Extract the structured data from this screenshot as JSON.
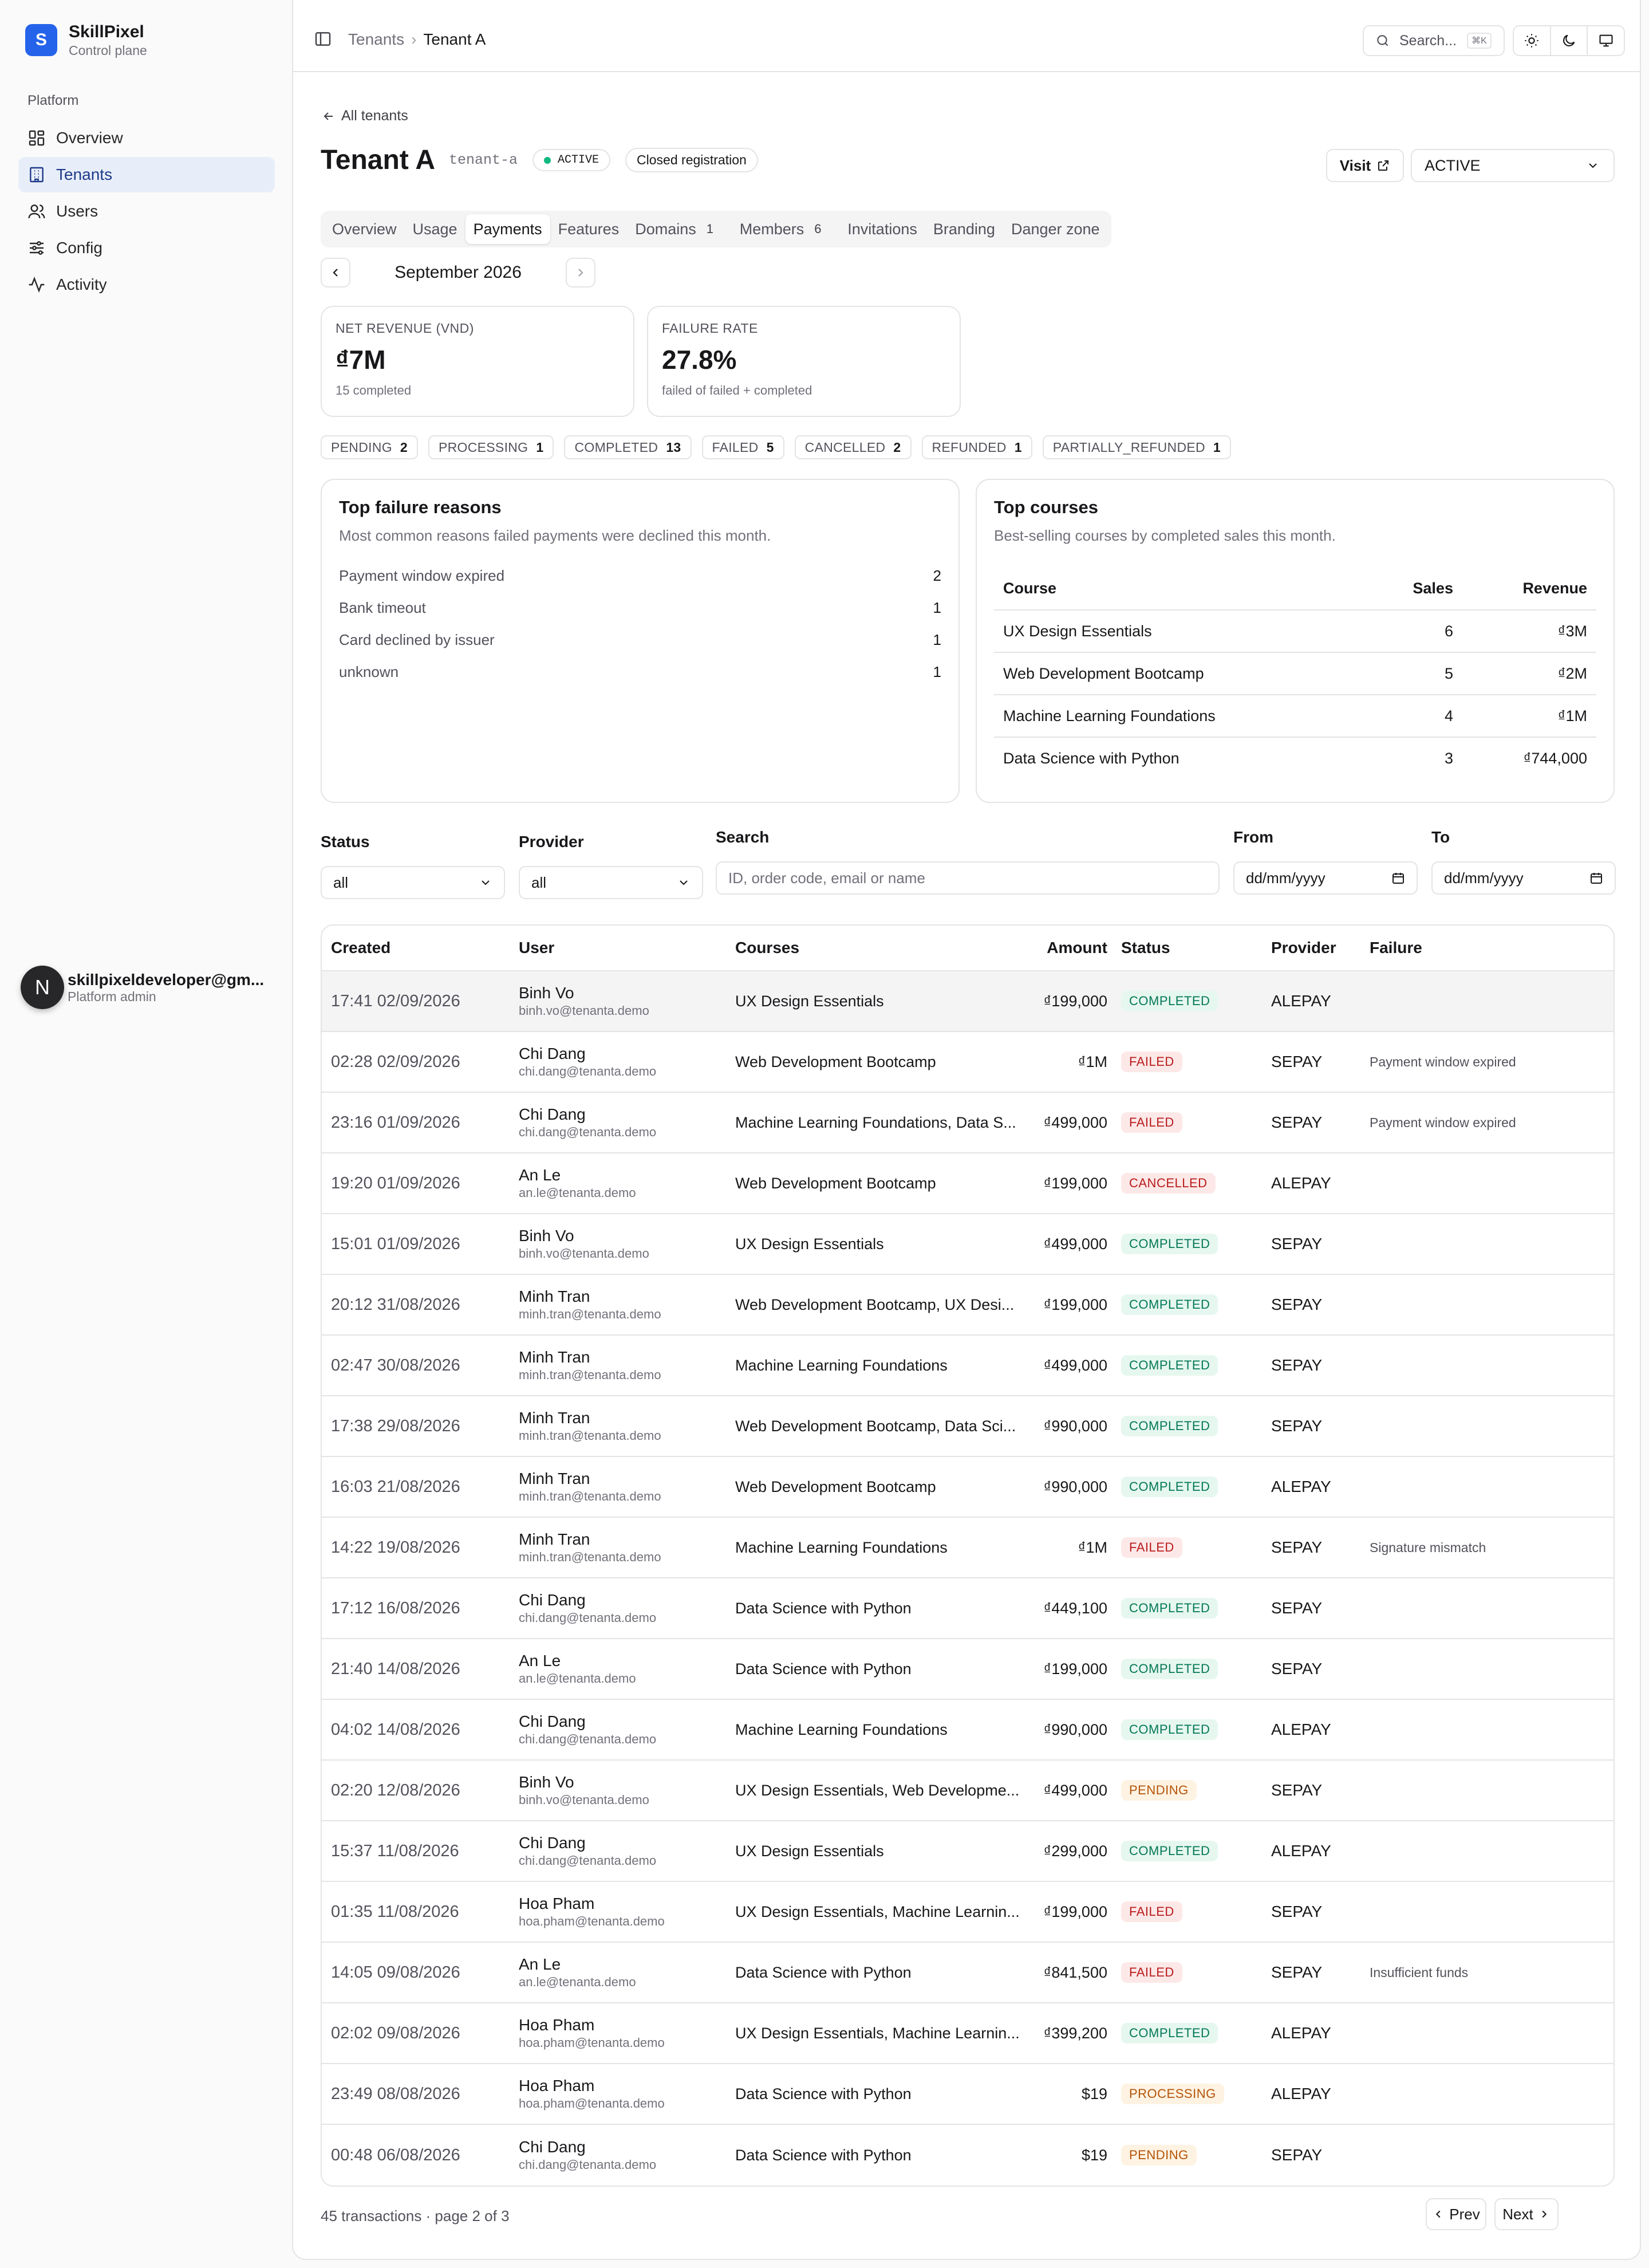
{
  "brand": {
    "initial": "S",
    "name": "SkillPixel",
    "subtitle": "Control plane"
  },
  "sidebar": {
    "group_label": "Platform",
    "items": [
      {
        "label": "Overview",
        "icon": "grid-icon",
        "active": false
      },
      {
        "label": "Tenants",
        "icon": "building-icon",
        "active": true
      },
      {
        "label": "Users",
        "icon": "users-icon",
        "active": false
      },
      {
        "label": "Config",
        "icon": "sliders-icon",
        "active": false
      },
      {
        "label": "Activity",
        "icon": "activity-icon",
        "active": false
      }
    ],
    "user": {
      "initial": "N",
      "email": "skillpixeldeveloper@gm...",
      "role": "Platform admin"
    }
  },
  "topbar": {
    "breadcrumb": [
      "Tenants",
      "Tenant A"
    ],
    "search_label": "Search...",
    "search_shortcut": "⌘K"
  },
  "header": {
    "back_label": "All tenants",
    "title": "Tenant A",
    "slug": "tenant-a",
    "status_badge": "ACTIVE",
    "registration_badge": "Closed registration",
    "visit_label": "Visit",
    "status_select": "ACTIVE"
  },
  "tabs": [
    {
      "label": "Overview",
      "count": null,
      "active": false
    },
    {
      "label": "Usage",
      "count": null,
      "active": false
    },
    {
      "label": "Payments",
      "count": null,
      "active": true
    },
    {
      "label": "Features",
      "count": null,
      "active": false
    },
    {
      "label": "Domains",
      "count": "1",
      "active": false
    },
    {
      "label": "Members",
      "count": "6",
      "active": false
    },
    {
      "label": "Invitations",
      "count": null,
      "active": false
    },
    {
      "label": "Branding",
      "count": null,
      "active": false
    },
    {
      "label": "Danger zone",
      "count": null,
      "active": false
    }
  ],
  "month": "September 2026",
  "stats": {
    "revenue": {
      "label": "NET REVENUE (VND)",
      "value": "₫7M",
      "sub": "15 completed"
    },
    "failure": {
      "label": "FAILURE RATE",
      "value": "27.8%",
      "sub": "failed of failed + completed"
    }
  },
  "status_counts": [
    {
      "label": "PENDING",
      "count": "2"
    },
    {
      "label": "PROCESSING",
      "count": "1"
    },
    {
      "label": "COMPLETED",
      "count": "13"
    },
    {
      "label": "FAILED",
      "count": "5"
    },
    {
      "label": "CANCELLED",
      "count": "2"
    },
    {
      "label": "REFUNDED",
      "count": "1"
    },
    {
      "label": "PARTIALLY_REFUNDED",
      "count": "1"
    }
  ],
  "failure_reasons": {
    "title": "Top failure reasons",
    "description": "Most common reasons failed payments were declined this month.",
    "items": [
      {
        "reason": "Payment window expired",
        "count": "2"
      },
      {
        "reason": "Bank timeout",
        "count": "1"
      },
      {
        "reason": "Card declined by issuer",
        "count": "1"
      },
      {
        "reason": "unknown",
        "count": "1"
      }
    ]
  },
  "top_courses": {
    "title": "Top courses",
    "description": "Best-selling courses by completed sales this month.",
    "headers": [
      "Course",
      "Sales",
      "Revenue"
    ],
    "rows": [
      {
        "course": "UX Design Essentials",
        "sales": "6",
        "revenue": "₫3M"
      },
      {
        "course": "Web Development Bootcamp",
        "sales": "5",
        "revenue": "₫2M"
      },
      {
        "course": "Machine Learning Foundations",
        "sales": "4",
        "revenue": "₫1M"
      },
      {
        "course": "Data Science with Python",
        "sales": "3",
        "revenue": "₫744,000"
      }
    ]
  },
  "filters": {
    "status": {
      "label": "Status",
      "value": "all"
    },
    "provider": {
      "label": "Provider",
      "value": "all"
    },
    "search": {
      "label": "Search",
      "placeholder": "ID, order code, email or name"
    },
    "from": {
      "label": "From",
      "placeholder": "dd/mm/yyyy"
    },
    "to": {
      "label": "To",
      "placeholder": "dd/mm/yyyy"
    }
  },
  "transactions": {
    "headers": [
      "Created",
      "User",
      "Courses",
      "Amount",
      "Status",
      "Provider",
      "Failure"
    ],
    "rows": [
      {
        "created": "17:41 02/09/2026",
        "name": "Binh Vo",
        "email": "binh.vo@tenanta.demo",
        "courses": "UX Design Essentials",
        "amount": "₫199,000",
        "status": "COMPLETED",
        "provider": "ALEPAY",
        "failure": ""
      },
      {
        "created": "02:28 02/09/2026",
        "name": "Chi Dang",
        "email": "chi.dang@tenanta.demo",
        "courses": "Web Development Bootcamp",
        "amount": "₫1M",
        "status": "FAILED",
        "provider": "SEPAY",
        "failure": "Payment window expired"
      },
      {
        "created": "23:16 01/09/2026",
        "name": "Chi Dang",
        "email": "chi.dang@tenanta.demo",
        "courses": "Machine Learning Foundations, Data S...",
        "amount": "₫499,000",
        "status": "FAILED",
        "provider": "SEPAY",
        "failure": "Payment window expired"
      },
      {
        "created": "19:20 01/09/2026",
        "name": "An Le",
        "email": "an.le@tenanta.demo",
        "courses": "Web Development Bootcamp",
        "amount": "₫199,000",
        "status": "CANCELLED",
        "provider": "ALEPAY",
        "failure": ""
      },
      {
        "created": "15:01 01/09/2026",
        "name": "Binh Vo",
        "email": "binh.vo@tenanta.demo",
        "courses": "UX Design Essentials",
        "amount": "₫499,000",
        "status": "COMPLETED",
        "provider": "SEPAY",
        "failure": ""
      },
      {
        "created": "20:12 31/08/2026",
        "name": "Minh Tran",
        "email": "minh.tran@tenanta.demo",
        "courses": "Web Development Bootcamp, UX Desi...",
        "amount": "₫199,000",
        "status": "COMPLETED",
        "provider": "SEPAY",
        "failure": ""
      },
      {
        "created": "02:47 30/08/2026",
        "name": "Minh Tran",
        "email": "minh.tran@tenanta.demo",
        "courses": "Machine Learning Foundations",
        "amount": "₫499,000",
        "status": "COMPLETED",
        "provider": "SEPAY",
        "failure": ""
      },
      {
        "created": "17:38 29/08/2026",
        "name": "Minh Tran",
        "email": "minh.tran@tenanta.demo",
        "courses": "Web Development Bootcamp, Data Sci...",
        "amount": "₫990,000",
        "status": "COMPLETED",
        "provider": "SEPAY",
        "failure": ""
      },
      {
        "created": "16:03 21/08/2026",
        "name": "Minh Tran",
        "email": "minh.tran@tenanta.demo",
        "courses": "Web Development Bootcamp",
        "amount": "₫990,000",
        "status": "COMPLETED",
        "provider": "ALEPAY",
        "failure": ""
      },
      {
        "created": "14:22 19/08/2026",
        "name": "Minh Tran",
        "email": "minh.tran@tenanta.demo",
        "courses": "Machine Learning Foundations",
        "amount": "₫1M",
        "status": "FAILED",
        "provider": "SEPAY",
        "failure": "Signature mismatch"
      },
      {
        "created": "17:12 16/08/2026",
        "name": "Chi Dang",
        "email": "chi.dang@tenanta.demo",
        "courses": "Data Science with Python",
        "amount": "₫449,100",
        "status": "COMPLETED",
        "provider": "SEPAY",
        "failure": ""
      },
      {
        "created": "21:40 14/08/2026",
        "name": "An Le",
        "email": "an.le@tenanta.demo",
        "courses": "Data Science with Python",
        "amount": "₫199,000",
        "status": "COMPLETED",
        "provider": "SEPAY",
        "failure": ""
      },
      {
        "created": "04:02 14/08/2026",
        "name": "Chi Dang",
        "email": "chi.dang@tenanta.demo",
        "courses": "Machine Learning Foundations",
        "amount": "₫990,000",
        "status": "COMPLETED",
        "provider": "ALEPAY",
        "failure": ""
      },
      {
        "created": "02:20 12/08/2026",
        "name": "Binh Vo",
        "email": "binh.vo@tenanta.demo",
        "courses": "UX Design Essentials, Web Developme...",
        "amount": "₫499,000",
        "status": "PENDING",
        "provider": "SEPAY",
        "failure": ""
      },
      {
        "created": "15:37 11/08/2026",
        "name": "Chi Dang",
        "email": "chi.dang@tenanta.demo",
        "courses": "UX Design Essentials",
        "amount": "₫299,000",
        "status": "COMPLETED",
        "provider": "ALEPAY",
        "failure": ""
      },
      {
        "created": "01:35 11/08/2026",
        "name": "Hoa Pham",
        "email": "hoa.pham@tenanta.demo",
        "courses": "UX Design Essentials, Machine Learnin...",
        "amount": "₫199,000",
        "status": "FAILED",
        "provider": "SEPAY",
        "failure": ""
      },
      {
        "created": "14:05 09/08/2026",
        "name": "An Le",
        "email": "an.le@tenanta.demo",
        "courses": "Data Science with Python",
        "amount": "₫841,500",
        "status": "FAILED",
        "provider": "SEPAY",
        "failure": "Insufficient funds"
      },
      {
        "created": "02:02 09/08/2026",
        "name": "Hoa Pham",
        "email": "hoa.pham@tenanta.demo",
        "courses": "UX Design Essentials, Machine Learnin...",
        "amount": "₫399,200",
        "status": "COMPLETED",
        "provider": "ALEPAY",
        "failure": ""
      },
      {
        "created": "23:49 08/08/2026",
        "name": "Hoa Pham",
        "email": "hoa.pham@tenanta.demo",
        "courses": "Data Science with Python",
        "amount": "$19",
        "status": "PROCESSING",
        "provider": "ALEPAY",
        "failure": ""
      },
      {
        "created": "00:48 06/08/2026",
        "name": "Chi Dang",
        "email": "chi.dang@tenanta.demo",
        "courses": "Data Science with Python",
        "amount": "$19",
        "status": "PENDING",
        "provider": "SEPAY",
        "failure": ""
      }
    ]
  },
  "pagination": {
    "summary": "45 transactions · page 2 of 3",
    "prev": "Prev",
    "next": "Next"
  },
  "colors": {
    "brand": "#2563eb",
    "completed": "#047857",
    "failed": "#b91c1c",
    "pending": "#b45309",
    "active_dot": "#10b981"
  }
}
